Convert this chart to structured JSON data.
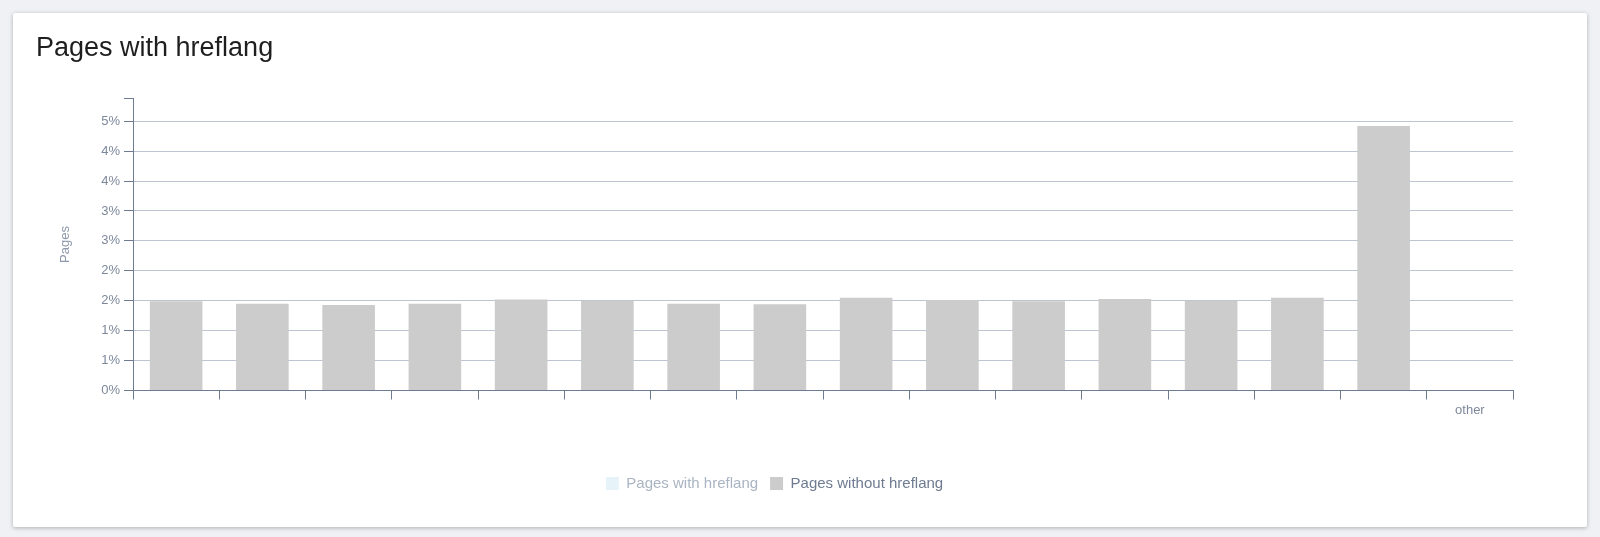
{
  "chart_data": {
    "type": "bar",
    "title": "Pages with hreflang",
    "ylabel": "Pages",
    "categories": [
      null,
      null,
      null,
      null,
      null,
      null,
      null,
      null,
      null,
      null,
      null,
      null,
      null,
      null,
      null,
      "other"
    ],
    "series": [
      {
        "name": "Pages with hreflang",
        "color": "#e6f3f9",
        "values": [
          null,
          null,
          null,
          null,
          null,
          null,
          null,
          null,
          null,
          null,
          null,
          null,
          null,
          null,
          null,
          null
        ]
      },
      {
        "name": "Pages without hreflang",
        "color": "#cccccc",
        "values": [
          1.49,
          1.45,
          1.43,
          1.45,
          1.52,
          1.5,
          1.45,
          1.44,
          1.55,
          1.51,
          1.49,
          1.53,
          1.5,
          1.55,
          4.42,
          null
        ]
      }
    ],
    "ylim": [
      0,
      4.88
    ],
    "yticks": [
      {
        "value": 0,
        "label": "0%"
      },
      {
        "value": 0.5,
        "label": "1%"
      },
      {
        "value": 1,
        "label": "1%"
      },
      {
        "value": 1.5,
        "label": "2%"
      },
      {
        "value": 2,
        "label": "2%"
      },
      {
        "value": 2.5,
        "label": "3%"
      },
      {
        "value": 3,
        "label": "3%"
      },
      {
        "value": 3.5,
        "label": "4%"
      },
      {
        "value": 4,
        "label": "4%"
      },
      {
        "value": 4.5,
        "label": "5%"
      },
      {
        "value": 4.88,
        "label": null
      }
    ],
    "grid": "y",
    "legend": "bottom"
  }
}
